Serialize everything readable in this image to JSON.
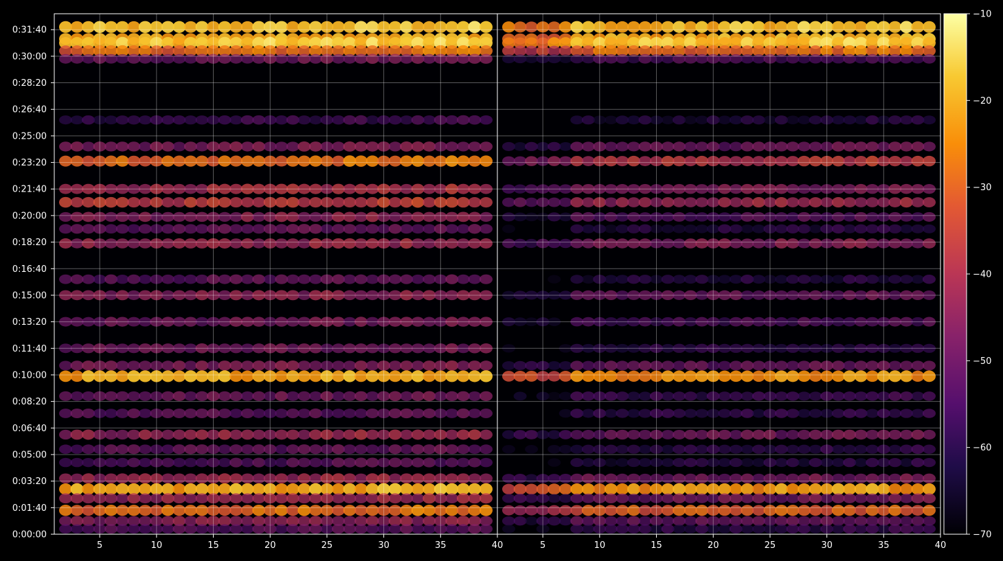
{
  "chart_data": {
    "type": "heatmap",
    "title": "",
    "xlabel": "",
    "ylabel": "",
    "panels": [
      {
        "name": "",
        "xlim": [
          1,
          40
        ],
        "xticks": [
          5,
          10,
          15,
          20,
          25,
          30,
          35
        ],
        "x_end_label": "40"
      },
      {
        "name": "",
        "xlim": [
          1,
          40
        ],
        "xticks": [
          5,
          10,
          15,
          20,
          25,
          30,
          35
        ],
        "x_end_label": "40"
      }
    ],
    "y_range_seconds": [
      0,
      1960
    ],
    "y_ticks": [
      {
        "seconds": 0,
        "label": "0:00:00"
      },
      {
        "seconds": 100,
        "label": "0:01:40"
      },
      {
        "seconds": 200,
        "label": "0:03:20"
      },
      {
        "seconds": 300,
        "label": "0:05:00"
      },
      {
        "seconds": 400,
        "label": "0:06:40"
      },
      {
        "seconds": 500,
        "label": "0:08:20"
      },
      {
        "seconds": 600,
        "label": "0:10:00"
      },
      {
        "seconds": 700,
        "label": "0:11:40"
      },
      {
        "seconds": 800,
        "label": "0:13:20"
      },
      {
        "seconds": 900,
        "label": "0:15:00"
      },
      {
        "seconds": 1000,
        "label": "0:16:40"
      },
      {
        "seconds": 1100,
        "label": "0:18:20"
      },
      {
        "seconds": 1200,
        "label": "0:20:00"
      },
      {
        "seconds": 1300,
        "label": "0:21:40"
      },
      {
        "seconds": 1400,
        "label": "0:23:20"
      },
      {
        "seconds": 1500,
        "label": "0:25:00"
      },
      {
        "seconds": 1600,
        "label": "0:26:40"
      },
      {
        "seconds": 1700,
        "label": "0:28:20"
      },
      {
        "seconds": 1800,
        "label": "0:30:00"
      },
      {
        "seconds": 1900,
        "label": "0:31:40"
      }
    ],
    "grid": true,
    "colormap": "inferno",
    "colorbar": {
      "range": [
        -70,
        -10
      ],
      "ticks": [
        {
          "value": -10,
          "label": "−10"
        },
        {
          "value": -20,
          "label": "−20"
        },
        {
          "value": -30,
          "label": "−30"
        },
        {
          "value": -40,
          "label": "−40"
        },
        {
          "value": -50,
          "label": "−50"
        },
        {
          "value": -60,
          "label": "−60"
        },
        {
          "value": -70,
          "label": "−70"
        }
      ]
    },
    "bands": [
      {
        "t": 1910,
        "level": -20,
        "left_gain": 0,
        "right_gain": 0
      },
      {
        "t": 1865,
        "level": -22,
        "left_gain": 0,
        "right_gain": 0
      },
      {
        "t": 1850,
        "level": -19,
        "left_gain": 0,
        "right_gain": 0
      },
      {
        "t": 1820,
        "level": -30,
        "left_gain": 0,
        "right_gain": 0
      },
      {
        "t": 1790,
        "level": -50,
        "left_gain": 0,
        "right_gain": -6
      },
      {
        "t": 1560,
        "level": -58,
        "left_gain": 0,
        "right_gain": -5
      },
      {
        "t": 1460,
        "level": -48,
        "left_gain": 0,
        "right_gain": -3
      },
      {
        "t": 1405,
        "level": -30,
        "left_gain": 0,
        "right_gain": -10
      },
      {
        "t": 1300,
        "level": -42,
        "left_gain": 0,
        "right_gain": -6
      },
      {
        "t": 1250,
        "level": -38,
        "left_gain": 0,
        "right_gain": -6
      },
      {
        "t": 1195,
        "level": -46,
        "left_gain": 0,
        "right_gain": -8
      },
      {
        "t": 1150,
        "level": -52,
        "left_gain": 0,
        "right_gain": -10
      },
      {
        "t": 1095,
        "level": -44,
        "left_gain": 0,
        "right_gain": -4
      },
      {
        "t": 960,
        "level": -52,
        "left_gain": 0,
        "right_gain": -10
      },
      {
        "t": 900,
        "level": -46,
        "left_gain": 0,
        "right_gain": -6
      },
      {
        "t": 800,
        "level": -50,
        "left_gain": 0,
        "right_gain": -6
      },
      {
        "t": 700,
        "level": -50,
        "left_gain": 0,
        "right_gain": -10
      },
      {
        "t": 635,
        "level": -48,
        "left_gain": 0,
        "right_gain": -4
      },
      {
        "t": 595,
        "level": -22,
        "left_gain": 0,
        "right_gain": -4
      },
      {
        "t": 520,
        "level": -50,
        "left_gain": 0,
        "right_gain": -8
      },
      {
        "t": 455,
        "level": -52,
        "left_gain": 0,
        "right_gain": -8
      },
      {
        "t": 375,
        "level": -44,
        "left_gain": 0,
        "right_gain": -6
      },
      {
        "t": 320,
        "level": -52,
        "left_gain": 0,
        "right_gain": -8
      },
      {
        "t": 270,
        "level": -54,
        "left_gain": 0,
        "right_gain": -8
      },
      {
        "t": 210,
        "level": -44,
        "left_gain": 0,
        "right_gain": -6
      },
      {
        "t": 170,
        "level": -22,
        "left_gain": 0,
        "right_gain": -3
      },
      {
        "t": 135,
        "level": -44,
        "left_gain": 0,
        "right_gain": -6
      },
      {
        "t": 90,
        "level": -30,
        "left_gain": 0,
        "right_gain": -3
      },
      {
        "t": 50,
        "level": -46,
        "left_gain": 0,
        "right_gain": -6
      },
      {
        "t": 20,
        "level": -54,
        "left_gain": 0,
        "right_gain": -6
      }
    ]
  }
}
